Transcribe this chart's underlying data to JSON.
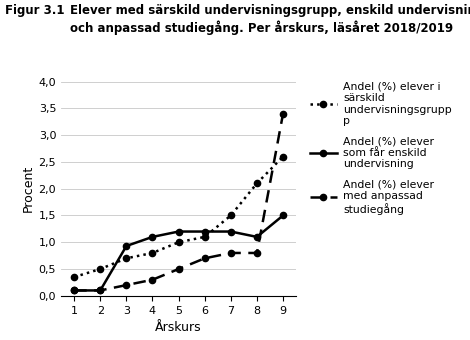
{
  "title_fig": "Figur 3.1",
  "title_main": "Elever med särskild undervisningsgrupp, enskild undervisning,\noch anpassad studiegång. Per årskurs, läsåret 2018/2019",
  "xlabel": "Årskurs",
  "ylabel": "Procent",
  "x": [
    1,
    2,
    3,
    4,
    5,
    6,
    7,
    8,
    9
  ],
  "sarskild": [
    0.35,
    0.5,
    0.7,
    0.8,
    1.0,
    1.1,
    1.5,
    2.1,
    2.6
  ],
  "enskild": [
    0.1,
    0.1,
    0.93,
    1.1,
    1.2,
    1.2,
    1.2,
    1.1,
    1.5
  ],
  "anpassad": [
    0.1,
    0.1,
    0.2,
    0.3,
    0.5,
    0.7,
    0.8,
    0.8,
    3.4
  ],
  "ylim": [
    0.0,
    4.0
  ],
  "yticks": [
    0.0,
    0.5,
    1.0,
    1.5,
    2.0,
    2.5,
    3.0,
    3.5,
    4.0
  ],
  "color": "#000000",
  "legend_sarskild": "Andel (%) elever i\nsärskild\nundervisningsgrupp\np",
  "legend_enskild": "Andel (%) elever\nsom får enskild\nundervisning",
  "legend_anpassad": "Andel (%) elever\nmed anpassad\nstudiegång"
}
